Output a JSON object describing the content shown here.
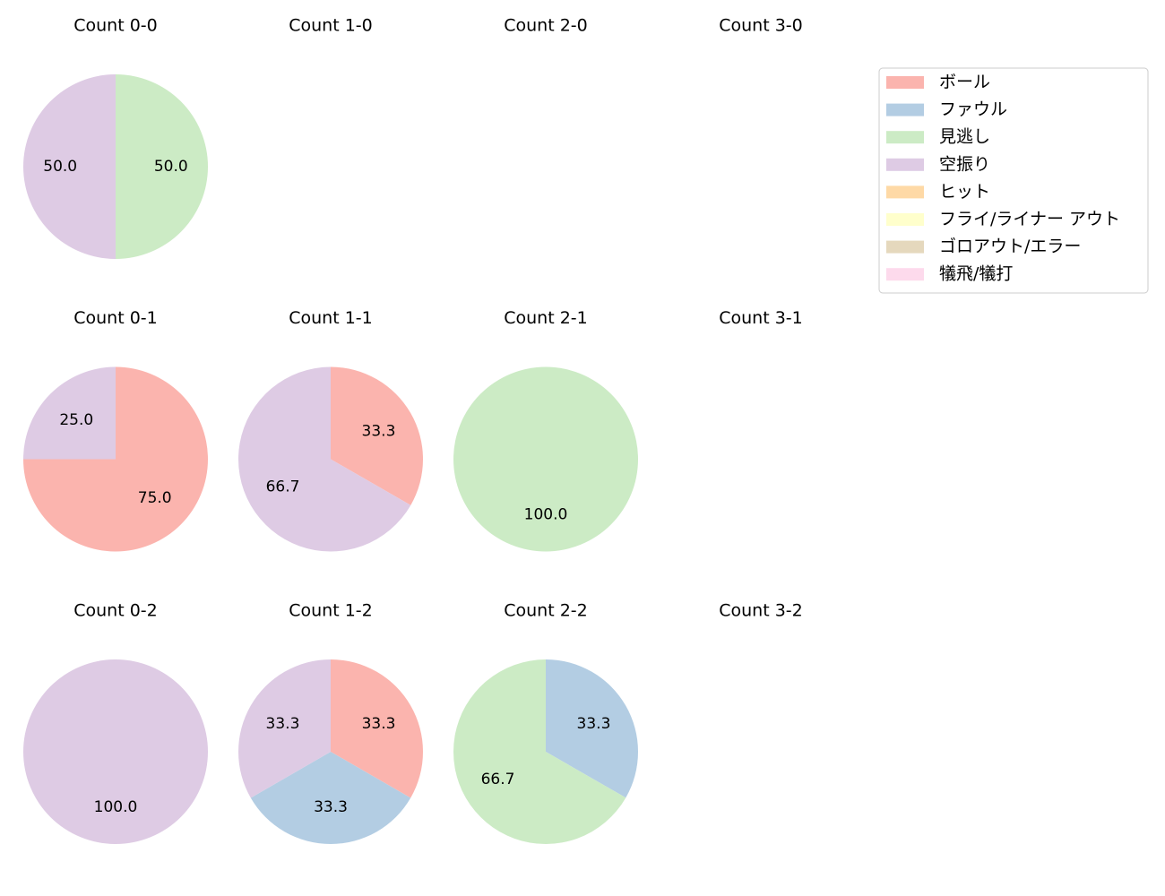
{
  "chart_data": [
    {
      "type": "pie",
      "title": "Count 0-0",
      "values": [
        null,
        null,
        50,
        50,
        null,
        null,
        null,
        null
      ],
      "value_labels": [
        null,
        null,
        "50.0",
        "50.0",
        null,
        null,
        null,
        null
      ]
    },
    {
      "type": "pie",
      "title": "Count 1-0"
    },
    {
      "type": "pie",
      "title": "Count 2-0"
    },
    {
      "type": "pie",
      "title": "Count 3-0"
    },
    {
      "type": "pie",
      "title": "Count 0-1",
      "values": [
        75,
        null,
        null,
        25,
        null,
        null,
        null,
        null
      ],
      "value_labels": [
        "75.0",
        null,
        null,
        "25.0",
        null,
        null,
        null,
        null
      ]
    },
    {
      "type": "pie",
      "title": "Count 1-1",
      "values": [
        33.3,
        null,
        null,
        66.7,
        null,
        null,
        null,
        null
      ],
      "value_labels": [
        "33.3",
        null,
        null,
        "66.7",
        null,
        null,
        null,
        null
      ]
    },
    {
      "type": "pie",
      "title": "Count 2-1",
      "values": [
        null,
        null,
        100,
        null,
        null,
        null,
        null,
        null
      ],
      "value_labels": [
        null,
        null,
        "100.0",
        null,
        null,
        null,
        null,
        null
      ]
    },
    {
      "type": "pie",
      "title": "Count 3-1"
    },
    {
      "type": "pie",
      "title": "Count 0-2",
      "values": [
        null,
        null,
        null,
        100,
        null,
        null,
        null,
        null
      ],
      "value_labels": [
        null,
        null,
        null,
        "100.0",
        null,
        null,
        null,
        null
      ]
    },
    {
      "type": "pie",
      "title": "Count 1-2",
      "values": [
        33.3,
        33.3,
        null,
        33.3,
        null,
        null,
        null,
        null
      ],
      "value_labels": [
        "33.3",
        "33.3",
        null,
        "33.3",
        null,
        null,
        null,
        null
      ]
    },
    {
      "type": "pie",
      "title": "Count 2-2",
      "values": [
        null,
        33.3,
        66.7,
        null,
        null,
        null,
        null,
        null
      ],
      "value_labels": [
        null,
        "33.3",
        "66.7",
        null,
        null,
        null,
        null,
        null
      ]
    },
    {
      "type": "pie",
      "title": "Count 3-2"
    }
  ],
  "legend": {
    "loc": "upper right",
    "series": [
      {
        "name": "ボール",
        "color": "#fbb4ae"
      },
      {
        "name": "ファウル",
        "color": "#b3cde3"
      },
      {
        "name": "見逃し",
        "color": "#ccebc5"
      },
      {
        "name": "空振り",
        "color": "#decbe4"
      },
      {
        "name": "ヒット",
        "color": "#fed9a6"
      },
      {
        "name": "フライ/ライナー アウト",
        "color": "#ffffcc"
      },
      {
        "name": "ゴロアウト/エラー",
        "color": "#e5d8bd"
      },
      {
        "name": "犠飛/犠打",
        "color": "#fddaec"
      }
    ]
  }
}
